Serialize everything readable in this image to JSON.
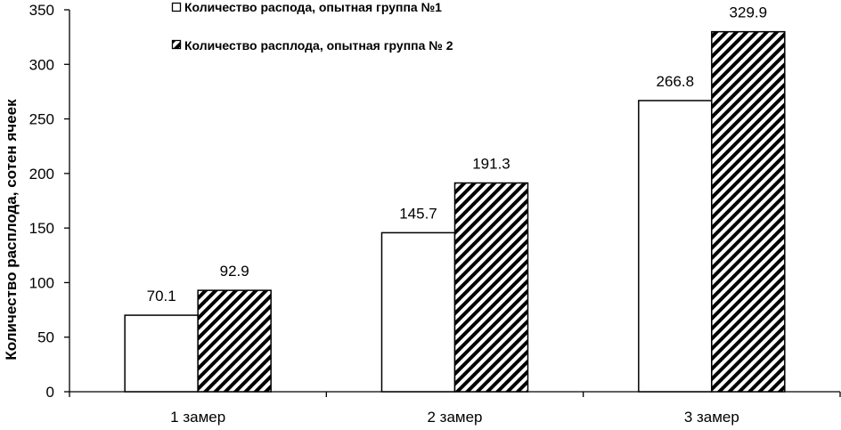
{
  "chart_data": {
    "type": "bar",
    "title": "",
    "xlabel": "",
    "ylabel": "Количество расплода, сотен ячеек",
    "categories": [
      "1 замер",
      "2 замер",
      "3 замер"
    ],
    "series": [
      {
        "name": "Количество распода, опытная группа №1",
        "values": [
          70.1,
          145.7,
          266.8
        ],
        "fill": "solid-white"
      },
      {
        "name": "Количество расплода, опытная группа № 2",
        "values": [
          92.9,
          191.3,
          329.9
        ],
        "fill": "diagonal-hatch"
      }
    ],
    "value_labels": [
      [
        "70.1",
        "145.7",
        "266.8"
      ],
      [
        "92.9",
        "191.3",
        "329.9"
      ]
    ],
    "ylim": [
      0,
      350
    ],
    "yticks": [
      "0",
      "50",
      "100",
      "150",
      "200",
      "250",
      "300",
      "350"
    ],
    "grid": false,
    "legend_position": "top-center",
    "colors": {
      "bar_edge": "#000000",
      "bar_fill": "#ffffff",
      "hatch": "#000000",
      "background": "#ffffff"
    }
  }
}
